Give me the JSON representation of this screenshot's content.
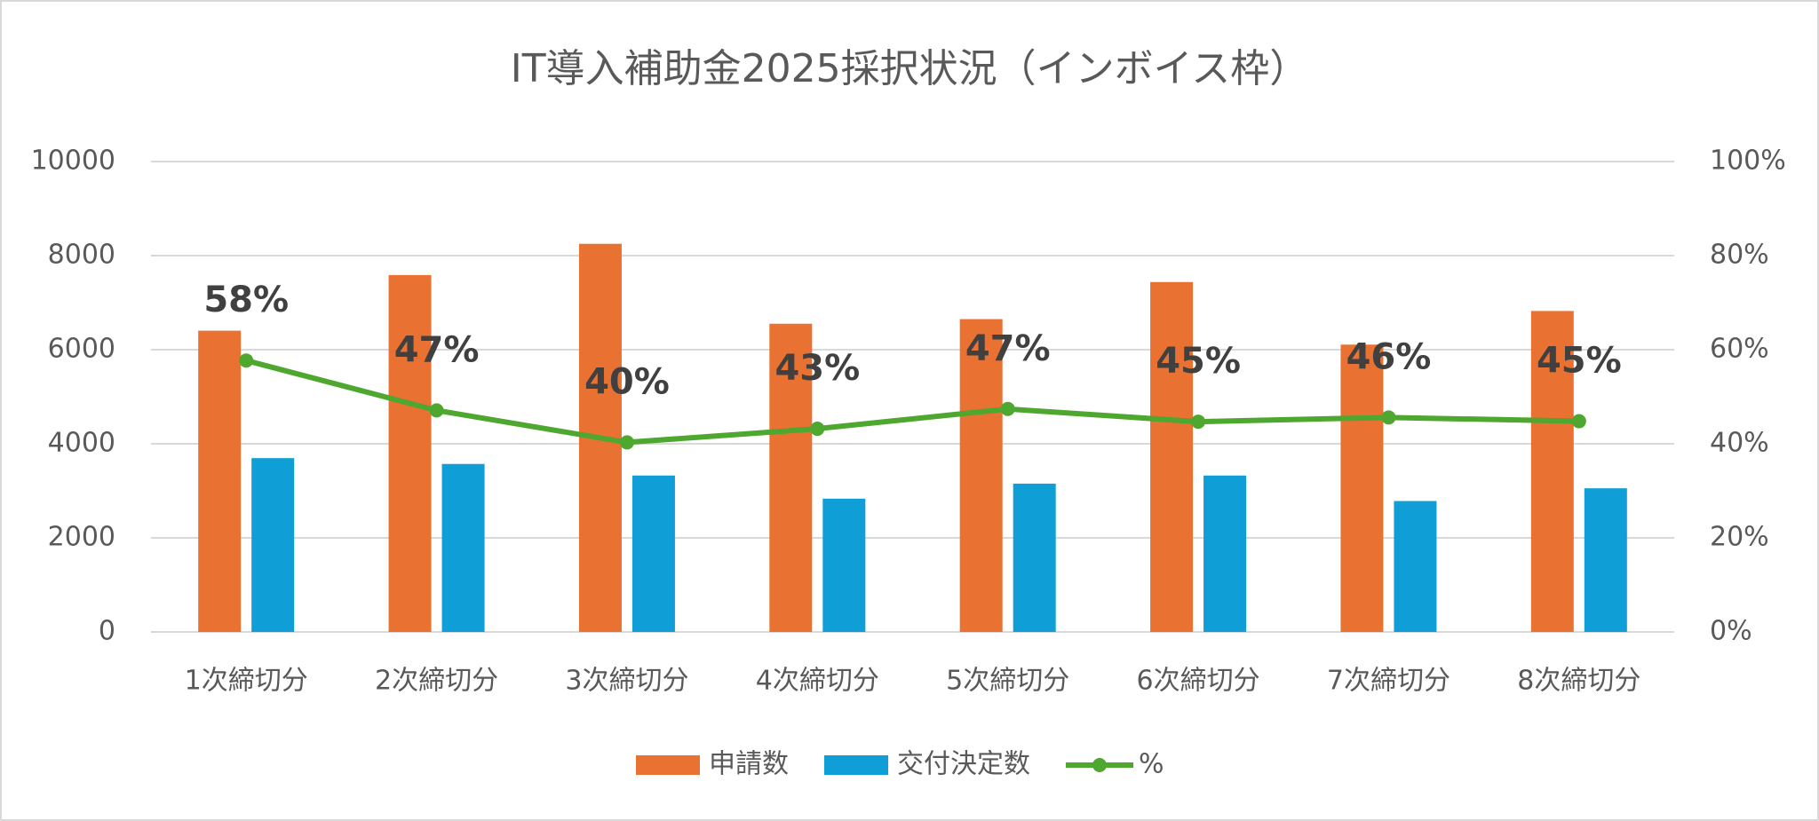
{
  "chart_data": {
    "type": "bar",
    "title": "IT導入補助金2025採択状況（インボイス枠）",
    "categories": [
      "1次締切分",
      "2次締切分",
      "3次締切分",
      "4次締切分",
      "5次締切分",
      "6次締切分",
      "7次締切分",
      "8次締切分"
    ],
    "series": [
      {
        "name": "申請数",
        "color": "#e97132",
        "values": [
          6404,
          7586,
          8251,
          6552,
          6650,
          7438,
          6108,
          6823
        ]
      },
      {
        "name": "交付決定数",
        "color": "#0f9ed5",
        "values": [
          3695,
          3571,
          3325,
          2833,
          3153,
          3325,
          2783,
          3054
        ]
      },
      {
        "name": "%",
        "color": "#4ea72e",
        "type": "line",
        "axis": "y2",
        "values": [
          57.7,
          47.1,
          40.3,
          43.2,
          47.4,
          44.7,
          45.6,
          44.8
        ],
        "value_labels": [
          "58%",
          "47%",
          "40%",
          "43%",
          "47%",
          "45%",
          "46%",
          "45%"
        ]
      }
    ],
    "ylim": [
      0,
      10000
    ],
    "yticks": [
      0,
      2000,
      4000,
      6000,
      8000,
      10000
    ],
    "y2lim": [
      0,
      100
    ],
    "y2ticks": [
      {
        "value": 0,
        "label": "0%"
      },
      {
        "value": 20,
        "label": "20%"
      },
      {
        "value": 40,
        "label": "40%"
      },
      {
        "value": 60,
        "label": "60%"
      },
      {
        "value": 80,
        "label": "80%"
      },
      {
        "value": 100,
        "label": "100%"
      }
    ],
    "grid": true,
    "legend": "bottom"
  }
}
